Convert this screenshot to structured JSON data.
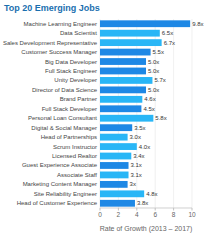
{
  "chart_data": {
    "type": "bar",
    "orientation": "horizontal",
    "title": "Top 20 Emerging Jobs",
    "xlabel": "Rate of Growth (2013 – 2017)",
    "categories": [
      "Machine Learning Engineer",
      "Data Scientist",
      "Sales Development Representative",
      "Customer Success Manager",
      "Big Data Developer",
      "Full Stack Engineer",
      "Unity Developer",
      "Director of Data Science",
      "Brand Partner",
      "Full Stack Developer",
      "Personal Loan Consultant",
      "Digital & Social Manager",
      "Head of Partnerships",
      "Scrum Instructor",
      "Licensed Realtor",
      "Guest Experience Associate",
      "Associate Staff",
      "Marketing Content Manager",
      "Site Reliability Engineer",
      "Head of Customer Experience"
    ],
    "values": [
      9.8,
      6.5,
      6.7,
      5.5,
      5.0,
      5.0,
      5.7,
      5.0,
      4.6,
      4.5,
      5.8,
      3.5,
      3.0,
      4.0,
      3.4,
      3.1,
      3.1,
      3.0,
      4.8,
      3.8
    ],
    "value_labels": [
      "9.8x",
      "6.5x",
      "6.7x",
      "5.5x",
      "5.0x",
      "5.0x",
      "5.7x",
      "5.0x",
      "4.6x",
      "4.5x",
      "5.8x",
      "3.5x",
      "3.0x",
      "4.0x",
      "3.4x",
      "3.1x",
      "3.1x",
      "3x",
      "4.8x",
      "3.8x"
    ],
    "data_labels": true,
    "colors": [
      "#1e88e5",
      "#29b6f6",
      "#29b6f6",
      "#1e88e5",
      "#1e88e5",
      "#1e88e5",
      "#29b6f6",
      "#1e88e5",
      "#29b6f6",
      "#1e88e5",
      "#29b6f6",
      "#1e88e5",
      "#29b6f6",
      "#29b6f6",
      "#29b6f6",
      "#1e88e5",
      "#29b6f6",
      "#1e88e5",
      "#29b6f6",
      "#1e88e5"
    ],
    "xlim": [
      0,
      10
    ],
    "xticks": [
      0,
      2,
      4,
      6,
      8,
      10
    ],
    "grid": true
  }
}
